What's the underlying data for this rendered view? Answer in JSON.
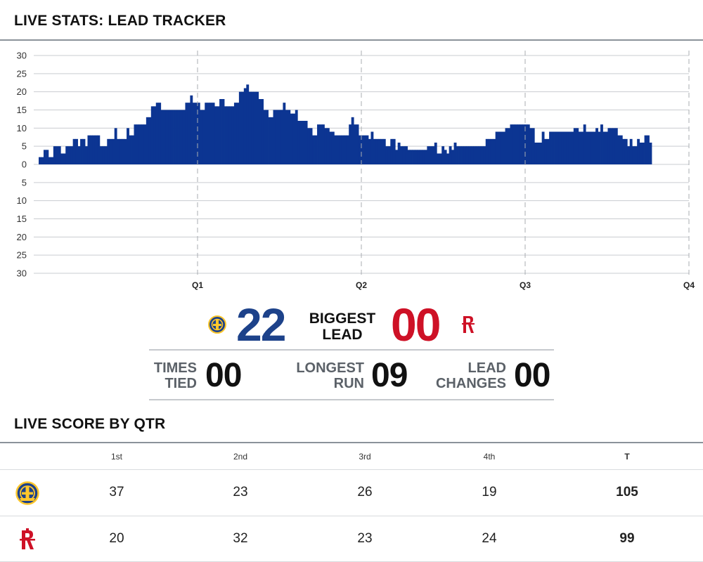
{
  "header": {
    "title": "LIVE STATS: LEAD TRACKER"
  },
  "chart_data": {
    "type": "bar",
    "title": "",
    "y_ticks_top": [
      "30",
      "25",
      "20",
      "15",
      "10",
      "5",
      "0"
    ],
    "y_ticks_bottom": [
      "5",
      "10",
      "15",
      "20",
      "25",
      "30"
    ],
    "ylim": [
      -30,
      30
    ],
    "x_ticks": [
      "Q1",
      "Q2",
      "Q3",
      "Q4"
    ],
    "xlim": [
      0,
      48
    ],
    "grid": true,
    "positive_color": "#0c3592",
    "series": [
      {
        "values": [
          2,
          2,
          4,
          4,
          2,
          2,
          5,
          5,
          5,
          3,
          3,
          5,
          5,
          5,
          7,
          7,
          5,
          7,
          7,
          5,
          8,
          8,
          8,
          8,
          8,
          5,
          5,
          5,
          7,
          7,
          7,
          10,
          7,
          7,
          7,
          7,
          10,
          8,
          8,
          11,
          11,
          11,
          11,
          11,
          13,
          13,
          16,
          16,
          17,
          17,
          15,
          15,
          15,
          15,
          15,
          15,
          15,
          15,
          15,
          15,
          17,
          17,
          19,
          17,
          17,
          17,
          15,
          15,
          17,
          17,
          17,
          17,
          16,
          16,
          18,
          18,
          16,
          16,
          16,
          16,
          17,
          17,
          20,
          20,
          21,
          22,
          20,
          20,
          20,
          20,
          18,
          18,
          15,
          15,
          13,
          13,
          15,
          15,
          15,
          15,
          17,
          15,
          15,
          14,
          14,
          15,
          12,
          12,
          12,
          12,
          10,
          10,
          8,
          8,
          11,
          11,
          11,
          10,
          10,
          9,
          9,
          8,
          8,
          8,
          8,
          8,
          8,
          11,
          13,
          11,
          11,
          8,
          8,
          8,
          8,
          7,
          9,
          7,
          7,
          7,
          7,
          7,
          5,
          5,
          7,
          7,
          4,
          6,
          5,
          5,
          5,
          4,
          4,
          4,
          4,
          4,
          4,
          4,
          4,
          5,
          5,
          5,
          6,
          3,
          3,
          5,
          4,
          3,
          5,
          4,
          6,
          5,
          5,
          5,
          5,
          5,
          5,
          5,
          5,
          5,
          5,
          5,
          5,
          7,
          7,
          7,
          7,
          9,
          9,
          9,
          9,
          10,
          10,
          11,
          11,
          11,
          11,
          11,
          11,
          11,
          11,
          10,
          10,
          6,
          6,
          6,
          9,
          7,
          7,
          9,
          9,
          9,
          9,
          9,
          9,
          9,
          9,
          9,
          9,
          10,
          10,
          9,
          9,
          11,
          9,
          9,
          9,
          9,
          10,
          9,
          11,
          9,
          9,
          10,
          10,
          10,
          10,
          8,
          8,
          7,
          7,
          5,
          7,
          5,
          5,
          7,
          6,
          6,
          8,
          8,
          6
        ]
      }
    ]
  },
  "stats": {
    "biggest_lead_label": [
      "BIGGEST",
      "LEAD"
    ],
    "gsw_biggest_lead": "22",
    "hou_biggest_lead": "00",
    "times_tied_label": [
      "TIMES",
      "TIED"
    ],
    "times_tied": "00",
    "longest_run_label": [
      "LONGEST",
      "RUN"
    ],
    "longest_run": "09",
    "lead_changes_label": [
      "LEAD",
      "CHANGES"
    ],
    "lead_changes": "00",
    "colors": {
      "gsw": "#1d428a",
      "hou": "#ce1126"
    }
  },
  "score": {
    "title": "LIVE SCORE BY QTR",
    "headers": [
      "1st",
      "2nd",
      "3rd",
      "4th",
      "T"
    ],
    "rows": [
      {
        "team_icon": "warriors-logo-icon",
        "values": [
          "37",
          "23",
          "26",
          "19",
          "105"
        ]
      },
      {
        "team_icon": "rockets-logo-icon",
        "values": [
          "20",
          "32",
          "23",
          "24",
          "99"
        ]
      }
    ]
  }
}
